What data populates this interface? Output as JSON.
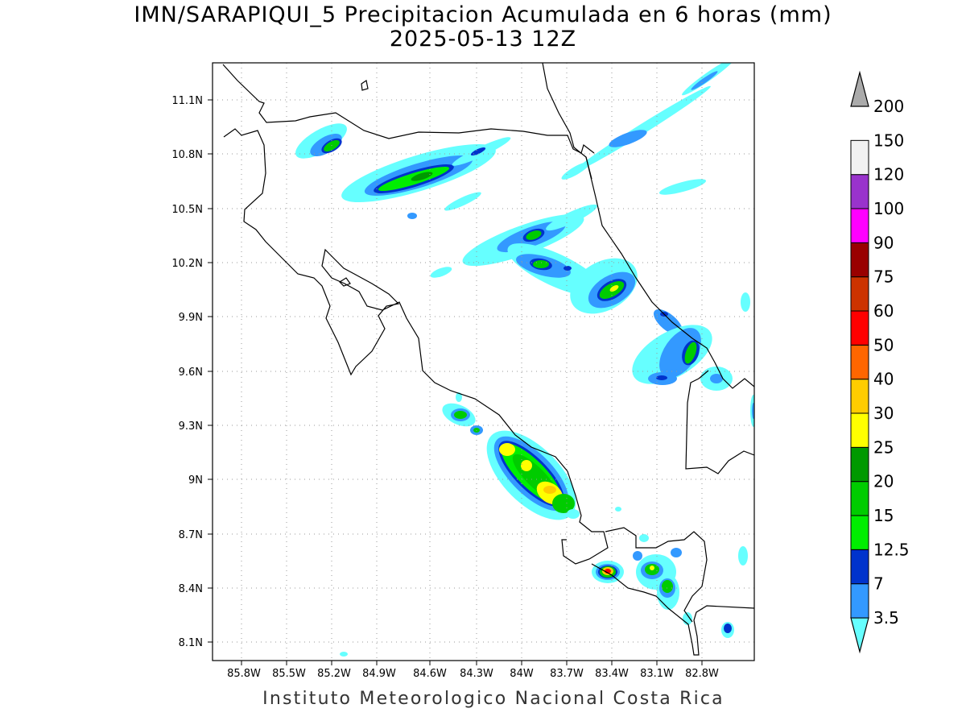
{
  "title_line1": "IMN/SARAPIQUI_5 Precipitacion Acumulada en 6 horas (mm)",
  "title_line2": "2025-05-13 12Z",
  "footer": "Instituto Meteorologico Nacional Costa Rica",
  "lat_ticks": [
    "11.1N",
    "10.8N",
    "10.5N",
    "10.2N",
    "9.9N",
    "9.6N",
    "9.3N",
    "9N",
    "8.7N",
    "8.4N",
    "8.1N"
  ],
  "lon_ticks": [
    "85.8W",
    "85.5W",
    "85.2W",
    "84.9W",
    "84.6W",
    "84.3W",
    "84W",
    "83.7W",
    "83.4W",
    "83.1W",
    "82.8W"
  ],
  "colorbar": {
    "levels": [
      "3.5",
      "7",
      "12.5",
      "15",
      "20",
      "25",
      "30",
      "40",
      "50",
      "60",
      "75",
      "90",
      "100",
      "120",
      "150",
      "200"
    ],
    "colors": [
      "#66ffff",
      "#3399ff",
      "#0033cc",
      "#00ee00",
      "#00cc00",
      "#009900",
      "#ffff00",
      "#ffcc00",
      "#ff6600",
      "#ff0000",
      "#cc3300",
      "#990000",
      "#ff00ff",
      "#9933cc",
      "#f2f2f2",
      "#aaaaaa"
    ]
  }
}
